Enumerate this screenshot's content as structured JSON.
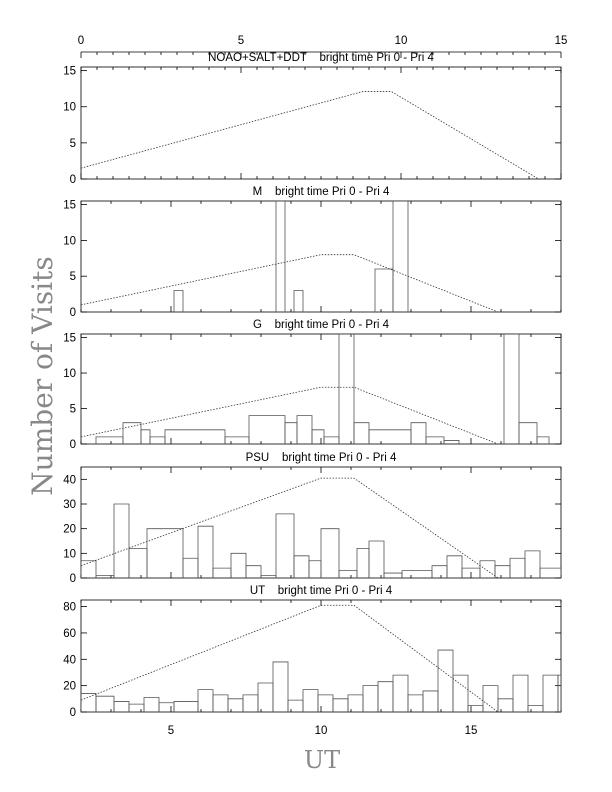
{
  "figure": {
    "ylabel": "Number of Visits",
    "xlabel": "UT",
    "top_axis_ticks": [
      "0",
      "5",
      "10",
      "15"
    ],
    "bottom_axis_ticks": [
      "5",
      "10",
      "15"
    ]
  },
  "chart_data": [
    {
      "type": "line",
      "title": "NOAO+SALT+DDT    bright time Pri 0 - Pri 4",
      "xlim": [
        0,
        15
      ],
      "ylim": [
        0,
        15.5
      ],
      "yticks": [
        0,
        5,
        10,
        15
      ],
      "histogram": [],
      "dotted_curve": {
        "x": [
          0,
          8.8,
          9.7,
          14.3
        ],
        "y": [
          1.5,
          12.1,
          12.1,
          0
        ]
      }
    },
    {
      "type": "line",
      "title": "M    bright time Pri 0 - Pri 4",
      "xlim": [
        2,
        18
      ],
      "ylim": [
        0,
        15.5
      ],
      "yticks": [
        0,
        5,
        10,
        15
      ],
      "histogram": [
        {
          "x0": 5.1,
          "x1": 5.4,
          "y": 3
        },
        {
          "x0": 8.5,
          "x1": 8.8,
          "y": 15.5
        },
        {
          "x0": 9.1,
          "x1": 9.4,
          "y": 3
        },
        {
          "x0": 11.8,
          "x1": 12.4,
          "y": 6
        },
        {
          "x0": 12.4,
          "x1": 12.9,
          "y": 15.5
        }
      ],
      "dotted_curve": {
        "x": [
          2,
          10,
          11.1,
          15.9
        ],
        "y": [
          1,
          8,
          8,
          0
        ]
      }
    },
    {
      "type": "line",
      "title": "G    bright time Pri 0 - Pri 4",
      "xlim": [
        2,
        18
      ],
      "ylim": [
        0,
        15.5
      ],
      "yticks": [
        0,
        5,
        10,
        15
      ],
      "histogram": [
        {
          "x0": 2.5,
          "x1": 3.4,
          "y": 1
        },
        {
          "x0": 3.4,
          "x1": 4.0,
          "y": 3
        },
        {
          "x0": 4.0,
          "x1": 4.3,
          "y": 2
        },
        {
          "x0": 4.3,
          "x1": 4.8,
          "y": 1
        },
        {
          "x0": 4.8,
          "x1": 6.8,
          "y": 2
        },
        {
          "x0": 6.8,
          "x1": 7.6,
          "y": 1
        },
        {
          "x0": 7.6,
          "x1": 8.8,
          "y": 4
        },
        {
          "x0": 8.8,
          "x1": 9.2,
          "y": 3
        },
        {
          "x0": 9.2,
          "x1": 9.7,
          "y": 4
        },
        {
          "x0": 9.7,
          "x1": 10.1,
          "y": 2
        },
        {
          "x0": 10.1,
          "x1": 10.6,
          "y": 1
        },
        {
          "x0": 10.6,
          "x1": 11.1,
          "y": 15.5
        },
        {
          "x0": 11.1,
          "x1": 11.6,
          "y": 3
        },
        {
          "x0": 11.6,
          "x1": 13.0,
          "y": 2
        },
        {
          "x0": 13.0,
          "x1": 13.5,
          "y": 3
        },
        {
          "x0": 13.5,
          "x1": 14.1,
          "y": 1
        },
        {
          "x0": 14.1,
          "x1": 14.6,
          "y": 0.5
        },
        {
          "x0": 16.1,
          "x1": 16.6,
          "y": 15.5
        },
        {
          "x0": 16.6,
          "x1": 17.2,
          "y": 3
        },
        {
          "x0": 17.2,
          "x1": 17.6,
          "y": 1
        }
      ],
      "dotted_curve": {
        "x": [
          2,
          10,
          11.1,
          15.9
        ],
        "y": [
          1,
          8,
          8,
          0
        ]
      }
    },
    {
      "type": "line",
      "title": "PSU    bright time Pri 0 - Pri 4",
      "xlim": [
        2,
        18
      ],
      "ylim": [
        0,
        45
      ],
      "yticks": [
        0,
        10,
        20,
        30,
        40
      ],
      "histogram": [
        {
          "x0": 2,
          "x1": 2.5,
          "y": 7
        },
        {
          "x0": 2.5,
          "x1": 3.1,
          "y": 1
        },
        {
          "x0": 3.1,
          "x1": 3.6,
          "y": 30
        },
        {
          "x0": 3.6,
          "x1": 4.2,
          "y": 12
        },
        {
          "x0": 4.2,
          "x1": 5.4,
          "y": 20
        },
        {
          "x0": 5.4,
          "x1": 5.9,
          "y": 8
        },
        {
          "x0": 5.9,
          "x1": 6.4,
          "y": 21
        },
        {
          "x0": 6.4,
          "x1": 7.0,
          "y": 4
        },
        {
          "x0": 7.0,
          "x1": 7.5,
          "y": 10
        },
        {
          "x0": 7.5,
          "x1": 8.0,
          "y": 5
        },
        {
          "x0": 8.0,
          "x1": 8.5,
          "y": 1
        },
        {
          "x0": 8.5,
          "x1": 9.1,
          "y": 26
        },
        {
          "x0": 9.1,
          "x1": 9.6,
          "y": 9
        },
        {
          "x0": 9.6,
          "x1": 10.0,
          "y": 7
        },
        {
          "x0": 10.0,
          "x1": 10.6,
          "y": 20
        },
        {
          "x0": 10.6,
          "x1": 11.2,
          "y": 3
        },
        {
          "x0": 11.2,
          "x1": 11.6,
          "y": 12
        },
        {
          "x0": 11.6,
          "x1": 12.1,
          "y": 15
        },
        {
          "x0": 12.1,
          "x1": 12.7,
          "y": 2
        },
        {
          "x0": 12.7,
          "x1": 13.7,
          "y": 3
        },
        {
          "x0": 13.7,
          "x1": 14.2,
          "y": 5
        },
        {
          "x0": 14.2,
          "x1": 14.7,
          "y": 9
        },
        {
          "x0": 14.7,
          "x1": 15.3,
          "y": 4
        },
        {
          "x0": 15.3,
          "x1": 15.8,
          "y": 7
        },
        {
          "x0": 15.8,
          "x1": 16.3,
          "y": 5
        },
        {
          "x0": 16.3,
          "x1": 16.8,
          "y": 8
        },
        {
          "x0": 16.8,
          "x1": 17.3,
          "y": 11
        },
        {
          "x0": 17.3,
          "x1": 18.0,
          "y": 4
        }
      ],
      "dotted_curve": {
        "x": [
          2,
          10,
          11.1,
          15.9
        ],
        "y": [
          5,
          40.5,
          40.5,
          0
        ]
      }
    },
    {
      "type": "line",
      "title": "UT    bright time Pri 0 - Pri 4",
      "xlim": [
        2,
        18
      ],
      "ylim": [
        0,
        85
      ],
      "yticks": [
        0,
        20,
        40,
        60,
        80
      ],
      "histogram": [
        {
          "x0": 2,
          "x1": 2.5,
          "y": 14
        },
        {
          "x0": 2.5,
          "x1": 3.1,
          "y": 12
        },
        {
          "x0": 3.1,
          "x1": 3.6,
          "y": 8
        },
        {
          "x0": 3.6,
          "x1": 4.1,
          "y": 6
        },
        {
          "x0": 4.1,
          "x1": 4.6,
          "y": 11
        },
        {
          "x0": 4.6,
          "x1": 5.1,
          "y": 7
        },
        {
          "x0": 5.1,
          "x1": 5.9,
          "y": 8
        },
        {
          "x0": 5.9,
          "x1": 6.4,
          "y": 17
        },
        {
          "x0": 6.4,
          "x1": 6.9,
          "y": 13
        },
        {
          "x0": 6.9,
          "x1": 7.4,
          "y": 10
        },
        {
          "x0": 7.4,
          "x1": 7.9,
          "y": 13
        },
        {
          "x0": 7.9,
          "x1": 8.4,
          "y": 22
        },
        {
          "x0": 8.4,
          "x1": 8.9,
          "y": 38
        },
        {
          "x0": 8.9,
          "x1": 9.4,
          "y": 9
        },
        {
          "x0": 9.4,
          "x1": 9.9,
          "y": 17
        },
        {
          "x0": 9.9,
          "x1": 10.4,
          "y": 13
        },
        {
          "x0": 10.4,
          "x1": 10.9,
          "y": 10
        },
        {
          "x0": 10.9,
          "x1": 11.4,
          "y": 13
        },
        {
          "x0": 11.4,
          "x1": 11.9,
          "y": 20
        },
        {
          "x0": 11.9,
          "x1": 12.4,
          "y": 23
        },
        {
          "x0": 12.4,
          "x1": 12.9,
          "y": 28
        },
        {
          "x0": 12.9,
          "x1": 13.4,
          "y": 13
        },
        {
          "x0": 13.4,
          "x1": 13.9,
          "y": 16
        },
        {
          "x0": 13.9,
          "x1": 14.4,
          "y": 47
        },
        {
          "x0": 14.4,
          "x1": 14.9,
          "y": 28
        },
        {
          "x0": 14.9,
          "x1": 15.4,
          "y": 5
        },
        {
          "x0": 15.4,
          "x1": 15.9,
          "y": 20
        },
        {
          "x0": 15.9,
          "x1": 16.4,
          "y": 10
        },
        {
          "x0": 16.4,
          "x1": 16.9,
          "y": 28
        },
        {
          "x0": 16.9,
          "x1": 17.4,
          "y": 5
        },
        {
          "x0": 17.4,
          "x1": 17.9,
          "y": 28
        },
        {
          "x0": 17.9,
          "x1": 18.0,
          "y": 28
        }
      ],
      "dotted_curve": {
        "x": [
          2,
          10,
          11.1,
          15.9
        ],
        "y": [
          9,
          81,
          81,
          0
        ]
      }
    }
  ]
}
